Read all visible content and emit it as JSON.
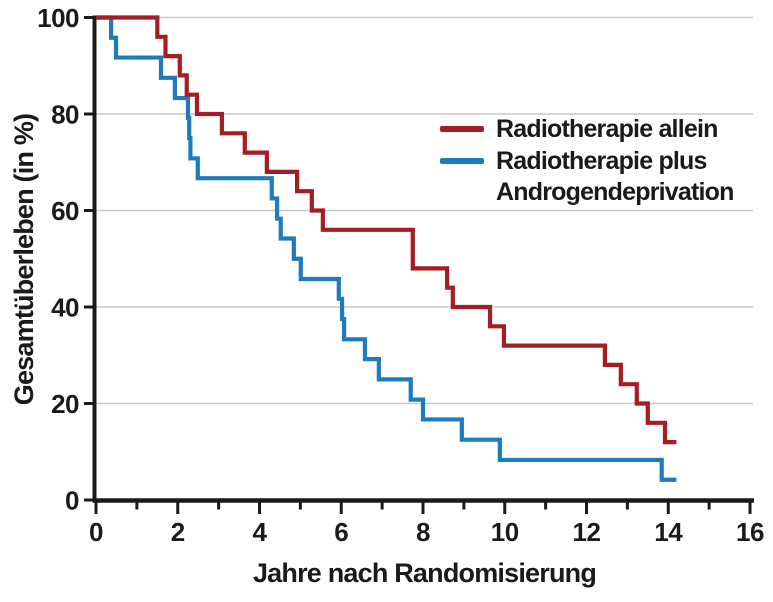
{
  "chart_data": {
    "type": "line",
    "subtype": "kaplan-meier-step",
    "title": "",
    "xlabel": "Jahre nach Randomisierung",
    "ylabel": "Gesamtüberleben (in %)",
    "xlim": [
      0,
      16
    ],
    "ylim": [
      0,
      100
    ],
    "xticks_major": [
      0,
      2,
      4,
      6,
      8,
      10,
      12,
      14,
      16
    ],
    "xticks_minor": [
      1,
      3,
      5,
      7,
      9,
      11,
      13,
      15
    ],
    "yticks": [
      0,
      20,
      40,
      60,
      80,
      100
    ],
    "grid": "horizontal-only",
    "gridline_color": "#c9c9c9",
    "axis_color": "#1a1a1a",
    "legend_position": "upper-right-inside",
    "series": [
      {
        "name": "Radiotherapie plus Androgendeprivation",
        "color": "#1f7cbc",
        "end_x": 14.2,
        "steps": [
          [
            0,
            100
          ],
          [
            0.37,
            95.8
          ],
          [
            0.49,
            91.7
          ],
          [
            1.59,
            87.5
          ],
          [
            1.93,
            83.3
          ],
          [
            2.25,
            79.2
          ],
          [
            2.28,
            75.0
          ],
          [
            2.31,
            70.8
          ],
          [
            2.49,
            66.7
          ],
          [
            4.3,
            62.5
          ],
          [
            4.43,
            58.3
          ],
          [
            4.52,
            54.2
          ],
          [
            4.84,
            50.0
          ],
          [
            5.01,
            45.8
          ],
          [
            5.94,
            41.7
          ],
          [
            6.02,
            37.5
          ],
          [
            6.07,
            33.3
          ],
          [
            6.58,
            29.2
          ],
          [
            6.92,
            25.0
          ],
          [
            7.7,
            20.8
          ],
          [
            8.0,
            16.7
          ],
          [
            8.95,
            12.5
          ],
          [
            9.88,
            8.3
          ],
          [
            13.84,
            4.2
          ]
        ]
      },
      {
        "name": "Radiotherapie allein",
        "color": "#a21e24",
        "end_x": 14.2,
        "steps": [
          [
            0,
            100
          ],
          [
            1.5,
            96
          ],
          [
            1.7,
            92
          ],
          [
            2.05,
            88
          ],
          [
            2.22,
            84
          ],
          [
            2.47,
            80
          ],
          [
            3.08,
            76
          ],
          [
            3.64,
            72
          ],
          [
            4.18,
            68
          ],
          [
            4.92,
            64
          ],
          [
            5.28,
            60
          ],
          [
            5.55,
            56
          ],
          [
            7.75,
            48
          ],
          [
            8.59,
            44
          ],
          [
            8.73,
            40
          ],
          [
            9.64,
            36
          ],
          [
            9.98,
            32
          ],
          [
            12.45,
            28
          ],
          [
            12.84,
            24
          ],
          [
            13.23,
            20
          ],
          [
            13.5,
            16
          ],
          [
            13.92,
            12
          ]
        ]
      }
    ]
  },
  "legend": {
    "items": [
      {
        "label": "Radiotherapie allein",
        "color": "#a21e24"
      },
      {
        "label_line1": "Radiotherapie plus",
        "label_line2": "Androgendeprivation",
        "color": "#1f7cbc"
      }
    ]
  },
  "axes": {
    "xlabel": "Jahre nach Randomisierung",
    "ylabel": "Gesamtüberleben (in %)"
  }
}
